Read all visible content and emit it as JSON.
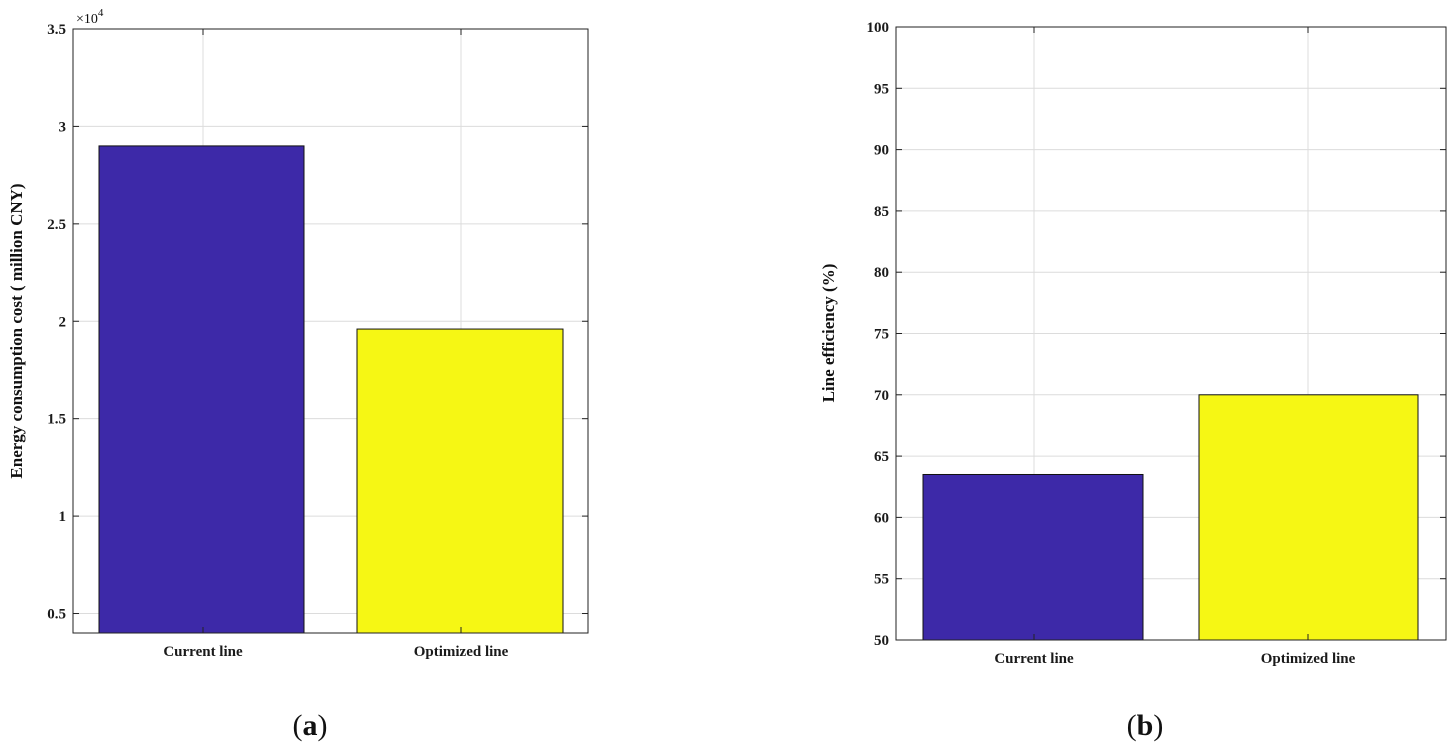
{
  "chart_data": [
    {
      "type": "bar",
      "categories": [
        "Current line",
        "Optimized line"
      ],
      "values": [
        29000,
        19600
      ],
      "ylabel": "Energy consumption cost ( million CNY)",
      "ylim": [
        4000,
        35000
      ],
      "yticks": [
        0.5,
        1,
        1.5,
        2,
        2.5,
        3,
        3.5
      ],
      "ytick_labels": [
        "0.5",
        "1",
        "1.5",
        "2",
        "2.5",
        "3",
        "3.5"
      ],
      "y_multiplier_label": "×10",
      "y_multiplier_exponent": "4",
      "panel_label_parts": [
        "(",
        "a",
        ")"
      ],
      "grid": true,
      "bar_colors": [
        "#3d29a8",
        "#f6f714"
      ]
    },
    {
      "type": "bar",
      "categories": [
        "Current line",
        "Optimized line"
      ],
      "values": [
        63.5,
        70
      ],
      "ylabel": "Line efficiency (%)",
      "ylim": [
        50,
        100
      ],
      "yticks": [
        50,
        55,
        60,
        65,
        70,
        75,
        80,
        85,
        90,
        95,
        100
      ],
      "ytick_labels": [
        "50",
        "55",
        "60",
        "65",
        "70",
        "75",
        "80",
        "85",
        "90",
        "95",
        "100"
      ],
      "panel_label_parts": [
        "(",
        "b",
        ")"
      ],
      "grid": true,
      "bar_colors": [
        "#3d29a8",
        "#f6f714"
      ]
    }
  ]
}
